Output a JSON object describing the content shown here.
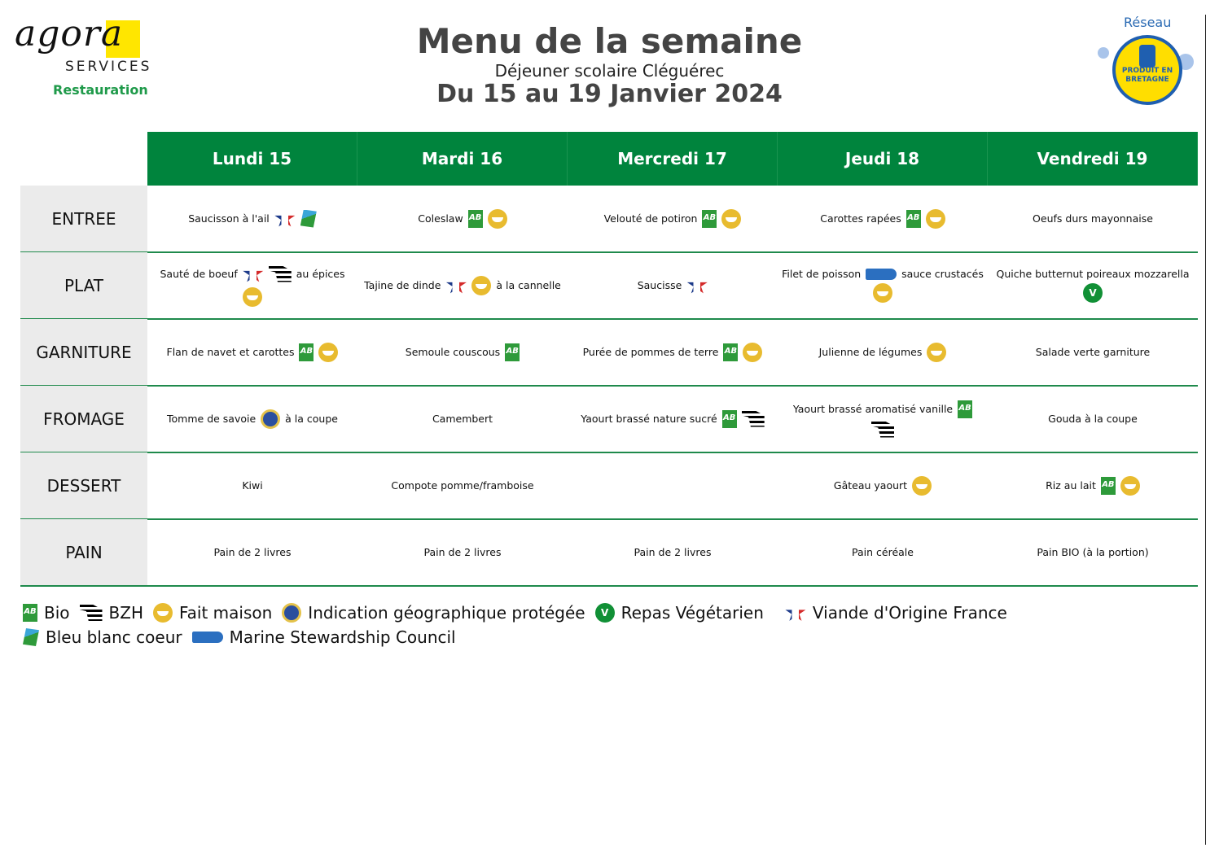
{
  "logo": {
    "brand": "agora",
    "services": "SERVICES",
    "division": "Restauration"
  },
  "header": {
    "title": "Menu de la semaine",
    "subtitle": "Déjeuner scolaire Cléguérec",
    "dates": "Du 15 au 19 Janvier 2024"
  },
  "badge": {
    "top": "Réseau",
    "text": "PRODUIT EN BRETAGNE"
  },
  "colors": {
    "header_green": "#00843d",
    "label_bg": "#ebebeb",
    "fait_maison": "#e8bb2f"
  },
  "days": [
    "Lundi 15",
    "Mardi 16",
    "Mercredi 17",
    "Jeudi 18",
    "Vendredi 19"
  ],
  "rows": [
    {
      "label": "ENTREE",
      "cells": [
        [
          {
            "t": "Saucisson à l'ail"
          },
          {
            "i": "vof"
          },
          {
            "i": "bbc"
          }
        ],
        [
          {
            "t": "Coleslaw"
          },
          {
            "i": "bio"
          },
          {
            "i": "fm"
          }
        ],
        [
          {
            "t": "Velouté de potiron"
          },
          {
            "i": "bio"
          },
          {
            "i": "fm"
          }
        ],
        [
          {
            "t": "Carottes rapées"
          },
          {
            "i": "bio"
          },
          {
            "i": "fm"
          }
        ],
        [
          {
            "t": "Oeufs durs mayonnaise"
          }
        ]
      ]
    },
    {
      "label": "PLAT",
      "cells": [
        [
          {
            "t": "Sauté de boeuf"
          },
          {
            "i": "vof"
          },
          {
            "i": "bzh"
          },
          {
            "t": "au épices"
          },
          {
            "i": "fm"
          }
        ],
        [
          {
            "t": "Tajine de dinde"
          },
          {
            "i": "vof"
          },
          {
            "i": "fm"
          },
          {
            "t": "à la cannelle"
          }
        ],
        [
          {
            "t": "Saucisse"
          },
          {
            "i": "vof"
          }
        ],
        [
          {
            "t": "Filet de poisson"
          },
          {
            "i": "msc"
          },
          {
            "t": "sauce crustacés"
          },
          {
            "i": "fm"
          }
        ],
        [
          {
            "t": "Quiche butternut poireaux mozzarella"
          },
          {
            "i": "vege"
          }
        ]
      ]
    },
    {
      "label": "GARNITURE",
      "cells": [
        [
          {
            "t": "Flan de navet et carottes"
          },
          {
            "i": "bio"
          },
          {
            "i": "fm"
          }
        ],
        [
          {
            "t": "Semoule couscous"
          },
          {
            "i": "bio"
          }
        ],
        [
          {
            "t": "Purée de pommes de terre"
          },
          {
            "i": "bio"
          },
          {
            "i": "fm"
          }
        ],
        [
          {
            "t": "Julienne de légumes"
          },
          {
            "i": "fm"
          }
        ],
        [
          {
            "t": "Salade verte garniture"
          }
        ]
      ]
    },
    {
      "label": "FROMAGE",
      "cells": [
        [
          {
            "t": "Tomme de savoie"
          },
          {
            "i": "igp"
          },
          {
            "t": "à la coupe"
          }
        ],
        [
          {
            "t": "Camembert"
          }
        ],
        [
          {
            "t": "Yaourt brassé nature sucré"
          },
          {
            "i": "bio"
          },
          {
            "i": "bzh"
          }
        ],
        [
          {
            "t": "Yaourt brassé aromatisé vanille"
          },
          {
            "i": "bio"
          },
          {
            "i": "bzh"
          }
        ],
        [
          {
            "t": "Gouda à la coupe"
          }
        ]
      ]
    },
    {
      "label": "DESSERT",
      "cells": [
        [
          {
            "t": "Kiwi"
          }
        ],
        [
          {
            "t": "Compote pomme/framboise"
          }
        ],
        [],
        [
          {
            "t": "Gâteau yaourt"
          },
          {
            "i": "fm"
          }
        ],
        [
          {
            "t": "Riz au lait"
          },
          {
            "i": "bio"
          },
          {
            "i": "fm"
          }
        ]
      ]
    },
    {
      "label": "PAIN",
      "cells": [
        [
          {
            "t": "Pain de 2 livres"
          }
        ],
        [
          {
            "t": "Pain de 2 livres"
          }
        ],
        [
          {
            "t": "Pain de 2 livres"
          }
        ],
        [
          {
            "t": "Pain céréale"
          }
        ],
        [
          {
            "t": "Pain BIO (à la portion)"
          }
        ]
      ]
    }
  ],
  "legend": [
    {
      "i": "bio",
      "label": "Bio"
    },
    {
      "i": "bzh",
      "label": "BZH"
    },
    {
      "i": "fm",
      "label": "Fait maison"
    },
    {
      "i": "igp",
      "label": "Indication géographique protégée"
    },
    {
      "i": "vege",
      "label": "Repas Végétarien"
    },
    {
      "i": "vof",
      "label": "Viande d'Origine France"
    },
    {
      "i": "bbc",
      "label": "Bleu blanc coeur"
    },
    {
      "i": "msc",
      "label": "Marine Stewardship Council"
    }
  ],
  "icon_names": {
    "bio": "bio-ab-icon",
    "bzh": "bzh-flag-icon",
    "fm": "fait-maison-icon",
    "igp": "igp-icon",
    "vege": "vegetarien-icon",
    "vof": "viande-origine-france-icon",
    "bbc": "bleu-blanc-coeur-icon",
    "msc": "msc-icon"
  }
}
